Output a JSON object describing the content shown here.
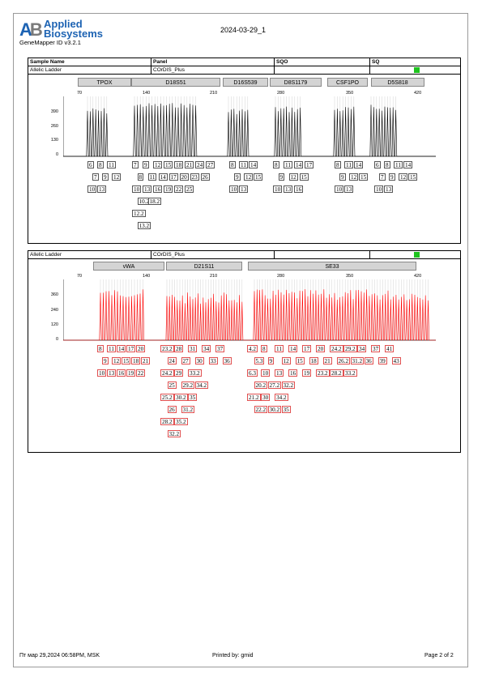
{
  "logo": {
    "mark": "AB",
    "line1": "Applied",
    "line2": "Biosystems"
  },
  "software": "GeneMapper ID v3.2.1",
  "run_date": "2024-03-29_1",
  "table_header": {
    "sample_name": "Sample Name",
    "panel": "Panel",
    "sqo": "SQO",
    "sq": "SQ"
  },
  "sample1": {
    "name": "Allelic Ladder",
    "panel": "COrDIS_Plus"
  },
  "sample2": {
    "name": "Allelic Ladder",
    "panel": "COrDIS_Plus"
  },
  "colors": {
    "blue_dye": "#000000",
    "red_dye": "#ff0000",
    "pass": "#1ec31e",
    "locus_bar": "#d4d4d4"
  },
  "panel1": {
    "loci": [
      "TPOX",
      "D18S51",
      "D16S539",
      "D8S1179",
      "CSF1PO",
      "D5S818"
    ],
    "scale": [
      "70",
      "140",
      "210",
      "280",
      "350",
      "420"
    ],
    "yticks": [
      "390",
      "260",
      "130",
      "0"
    ],
    "alleles": {
      "tpox": [
        [
          "6",
          "8",
          "11"
        ],
        [
          "7",
          "9",
          "12"
        ],
        [
          "10",
          "13"
        ]
      ],
      "d18s51": [
        [
          "7",
          "9",
          "12",
          "15",
          "18",
          "21",
          "24",
          "27"
        ],
        [
          "8",
          "11",
          "14",
          "17",
          "20",
          "23",
          "26"
        ],
        [
          "10",
          "13",
          "16",
          "19",
          "22",
          "25"
        ],
        [
          "10.2",
          "18.2"
        ],
        [
          "12.2"
        ],
        [
          "13.2"
        ]
      ],
      "d16s539": [
        [
          "8",
          "11",
          "14"
        ],
        [
          "9",
          "12",
          "15"
        ],
        [
          "10",
          "13"
        ]
      ],
      "d8s1179": [
        [
          "8",
          "11",
          "14",
          "17"
        ],
        [
          "9",
          "12",
          "15"
        ],
        [
          "10",
          "13",
          "16"
        ]
      ],
      "csf1po": [
        [
          "8",
          "11",
          "14"
        ],
        [
          "9",
          "12",
          "15"
        ],
        [
          "10",
          "13"
        ]
      ],
      "d5s818": [
        [
          "6",
          "8",
          "11",
          "14"
        ],
        [
          "7",
          "9",
          "12",
          "15"
        ],
        [
          "10",
          "13"
        ]
      ]
    }
  },
  "panel2": {
    "loci": [
      "vWA",
      "D21S11",
      "SE33"
    ],
    "scale": [
      "70",
      "140",
      "210",
      "280",
      "350",
      "420"
    ],
    "yticks": [
      "360",
      "240",
      "120",
      "0"
    ],
    "alleles": {
      "vwa": [
        [
          "8",
          "11",
          "14",
          "17",
          "20"
        ],
        [
          "9",
          "12",
          "15",
          "18",
          "21"
        ],
        [
          "10",
          "13",
          "16",
          "19",
          "22"
        ]
      ],
      "d21s11": [
        [
          "23.2",
          "28",
          "31",
          "34",
          "37"
        ],
        [
          "24",
          "27",
          "30",
          "33",
          "36"
        ],
        [
          "24.2",
          "29",
          "33.2"
        ],
        [
          "25",
          "29.2",
          "34.2"
        ],
        [
          "25.2",
          "30.2",
          "35"
        ],
        [
          "26",
          "31.2"
        ],
        [
          "28.2",
          "35.2"
        ],
        [
          "32.2"
        ]
      ],
      "se33": [
        [
          "4.2",
          "8",
          "11",
          "14",
          "17",
          "20",
          "24.2",
          "29.2",
          "34",
          "37",
          "41"
        ],
        [
          "5.3",
          "9",
          "12",
          "15",
          "18",
          "21",
          "26.2",
          "31.2",
          "36",
          "39",
          "43"
        ],
        [
          "6.3",
          "10",
          "13",
          "16",
          "19",
          "23.2",
          "28.2",
          "33.2"
        ],
        [
          "20.2",
          "27.2",
          "32.2"
        ],
        [
          "21.2",
          "30",
          "34.2"
        ],
        [
          "22.2",
          "30.2",
          "35"
        ]
      ]
    }
  },
  "footer": {
    "timestamp": "Пт мар 29,2024 06:58PM, MSK",
    "printed_by": "Printed by: gmid",
    "page": "Page 2 of 2"
  }
}
